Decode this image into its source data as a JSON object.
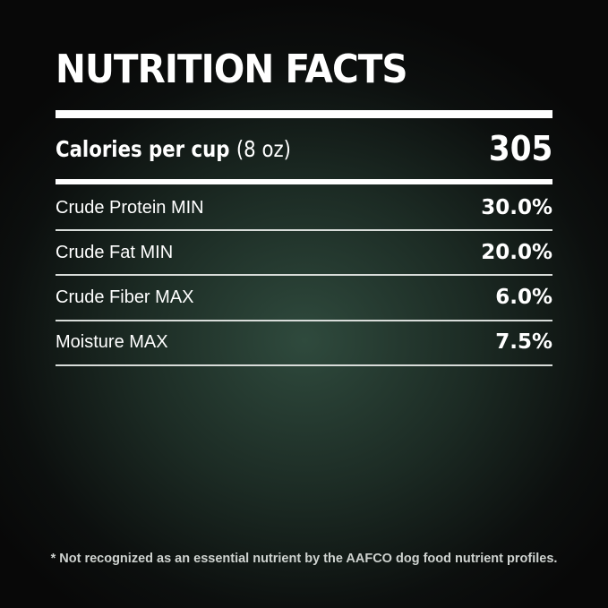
{
  "title": "NUTRITION FACTS",
  "calories": {
    "label": "Calories per cup",
    "unit": "(8 oz)",
    "value": "305"
  },
  "nutrients": [
    {
      "label": "Crude Protein MIN",
      "value": "30.0%"
    },
    {
      "label": "Crude Fat MIN",
      "value": "20.0%"
    },
    {
      "label": "Crude Fiber MAX",
      "value": "6.0%"
    },
    {
      "label": "Moisture MAX",
      "value": "7.5%"
    }
  ],
  "footnote": "* Not recognized as an essential nutrient by the AAFCO dog food nutrient profiles.",
  "colors": {
    "text": "#ffffff",
    "background_center": "#2f4a3d",
    "background_edge": "#080808"
  }
}
